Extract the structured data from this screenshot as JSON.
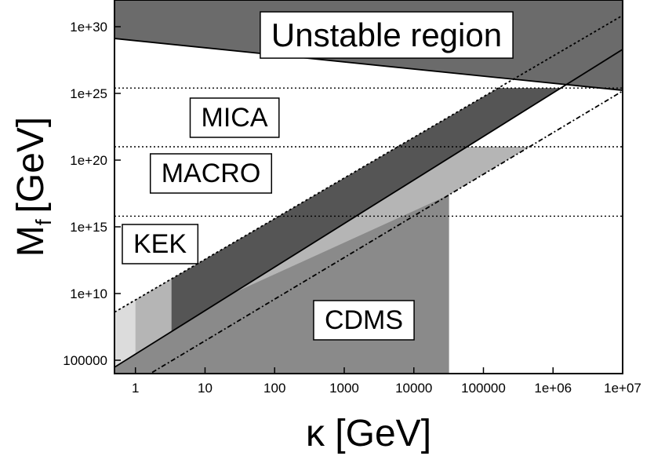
{
  "chart_data": {
    "type": "area",
    "title": "",
    "xlabel": "κ [GeV]",
    "ylabel_main": "M",
    "ylabel_sub": "f",
    "ylabel_unit": "[GeV]",
    "xscale": "log",
    "yscale": "log",
    "xlim": [
      0.5,
      10000000.0
    ],
    "ylim": [
      10000.0,
      1e+32
    ],
    "x_ticks": [
      {
        "value": 1,
        "label": "1"
      },
      {
        "value": 10,
        "label": "10"
      },
      {
        "value": 100,
        "label": "100"
      },
      {
        "value": 1000,
        "label": "1000"
      },
      {
        "value": 10000,
        "label": "10000"
      },
      {
        "value": 100000,
        "label": "100000"
      },
      {
        "value": 1000000,
        "label": "1e+06"
      },
      {
        "value": 10000000,
        "label": "1e+07"
      }
    ],
    "y_ticks": [
      {
        "value": 100000.0,
        "label": "100000"
      },
      {
        "value": 10000000000.0,
        "label": "1e+10"
      },
      {
        "value": 1000000000000000.0,
        "label": "1e+15"
      },
      {
        "value": 1e+20,
        "label": "1e+20"
      },
      {
        "value": 1e+25,
        "label": "1e+25"
      },
      {
        "value": 1e+30,
        "label": "1e+30"
      }
    ],
    "regions": [
      {
        "label": "Unstable region",
        "color": "#6b6b6b",
        "boundary": [
          [
            0.5,
            1.3e+29
          ],
          [
            10000000.0,
            1.7e+25
          ]
        ]
      },
      {
        "label": "CDMS",
        "color": "#8a8a8a",
        "kappa_max": 32000,
        "band": "between lines A and C"
      },
      {
        "label": "KEK",
        "color": "#dcdcdc",
        "kappa_min": 0.5,
        "mf_max": 6300000000000000.0,
        "band": "between lines A and C"
      },
      {
        "label": "MACRO",
        "color": "#b5b5b5",
        "kappa_min": 1.0,
        "mf_max": 1e+21,
        "band": "between lines A and C"
      },
      {
        "label": "MICA",
        "color": "#555555",
        "kappa_min": 3.3,
        "mf_max": 2.5e+25,
        "band": "between lines A and B"
      }
    ],
    "lines": [
      {
        "name": "A",
        "style": "dotted",
        "points": [
          [
            0.5,
            400000000.0
          ],
          [
            10000000.0,
            7e+30
          ]
        ]
      },
      {
        "name": "B",
        "style": "solid",
        "points": [
          [
            0.5,
            30000.0
          ],
          [
            10000000.0,
            2e+28
          ]
        ]
      },
      {
        "name": "C",
        "style": "dash-dot",
        "points": [
          [
            0.5,
            250.0
          ],
          [
            10000000.0,
            1.5e+25
          ]
        ]
      }
    ],
    "horizontal_dotted_lines": [
      2.5e+25,
      1e+21,
      6300000000000000.0
    ]
  }
}
